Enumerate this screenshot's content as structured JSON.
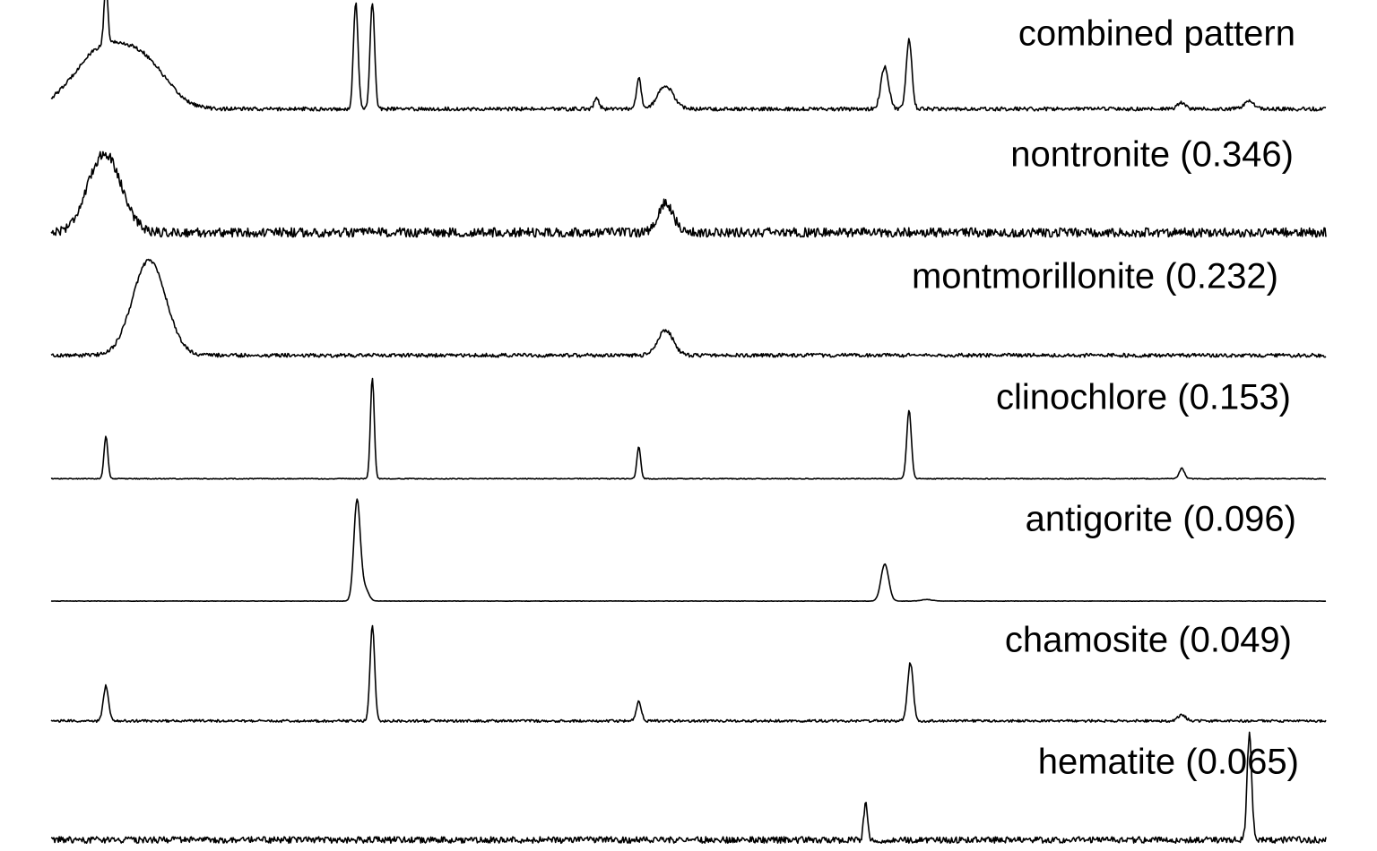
{
  "chart_data": {
    "type": "line",
    "title": "",
    "xlabel": "",
    "ylabel": "",
    "grid": false,
    "legend": "none",
    "x_range": [
      0,
      1
    ],
    "line_color": "#000000",
    "series": [
      {
        "name": "combined pattern",
        "baseline": 0.02,
        "noise": 0.018,
        "peaks": [
          {
            "x": 0.04,
            "h": 0.55,
            "w": 0.022
          },
          {
            "x": 0.043,
            "h": 0.55,
            "w": 0.0015
          },
          {
            "x": 0.075,
            "h": 0.35,
            "w": 0.018
          },
          {
            "x": 0.239,
            "h": 1.0,
            "w": 0.0018
          },
          {
            "x": 0.252,
            "h": 1.0,
            "w": 0.0018
          },
          {
            "x": 0.428,
            "h": 0.1,
            "w": 0.002
          },
          {
            "x": 0.461,
            "h": 0.3,
            "w": 0.0018
          },
          {
            "x": 0.482,
            "h": 0.22,
            "w": 0.006
          },
          {
            "x": 0.654,
            "h": 0.4,
            "w": 0.003
          },
          {
            "x": 0.673,
            "h": 0.65,
            "w": 0.0022
          },
          {
            "x": 0.887,
            "h": 0.06,
            "w": 0.003
          },
          {
            "x": 0.94,
            "h": 0.07,
            "w": 0.004
          }
        ]
      },
      {
        "name": "nontronite (0.346)",
        "baseline": 0.02,
        "noise": 0.045,
        "peaks": [
          {
            "x": 0.042,
            "h": 0.75,
            "w": 0.013
          },
          {
            "x": 0.482,
            "h": 0.28,
            "w": 0.006
          }
        ]
      },
      {
        "name": "montmorillonite (0.232)",
        "baseline": 0.02,
        "noise": 0.018,
        "peaks": [
          {
            "x": 0.077,
            "h": 0.9,
            "w": 0.013
          },
          {
            "x": 0.482,
            "h": 0.24,
            "w": 0.006
          }
        ]
      },
      {
        "name": "clinochlore (0.153)",
        "baseline": 0.005,
        "noise": 0.004,
        "peaks": [
          {
            "x": 0.043,
            "h": 0.4,
            "w": 0.0015
          },
          {
            "x": 0.252,
            "h": 0.95,
            "w": 0.0015
          },
          {
            "x": 0.461,
            "h": 0.3,
            "w": 0.0015
          },
          {
            "x": 0.673,
            "h": 0.65,
            "w": 0.0018
          },
          {
            "x": 0.887,
            "h": 0.1,
            "w": 0.002
          }
        ]
      },
      {
        "name": "antigorite (0.096)",
        "baseline": 0.0,
        "noise": 0.002,
        "peaks": [
          {
            "x": 0.24,
            "h": 0.95,
            "w": 0.0025
          },
          {
            "x": 0.246,
            "h": 0.12,
            "w": 0.003
          },
          {
            "x": 0.654,
            "h": 0.35,
            "w": 0.003
          },
          {
            "x": 0.687,
            "h": 0.015,
            "w": 0.004
          }
        ]
      },
      {
        "name": "chamosite (0.049)",
        "baseline": 0.01,
        "noise": 0.012,
        "peaks": [
          {
            "x": 0.043,
            "h": 0.33,
            "w": 0.002
          },
          {
            "x": 0.252,
            "h": 0.9,
            "w": 0.0018
          },
          {
            "x": 0.461,
            "h": 0.18,
            "w": 0.002
          },
          {
            "x": 0.674,
            "h": 0.55,
            "w": 0.0022
          },
          {
            "x": 0.887,
            "h": 0.06,
            "w": 0.003
          }
        ]
      },
      {
        "name": "hematite (0.065)",
        "baseline": 0.02,
        "noise": 0.03,
        "peaks": [
          {
            "x": 0.639,
            "h": 0.35,
            "w": 0.0015
          },
          {
            "x": 0.94,
            "h": 1.0,
            "w": 0.0018
          }
        ]
      }
    ]
  }
}
